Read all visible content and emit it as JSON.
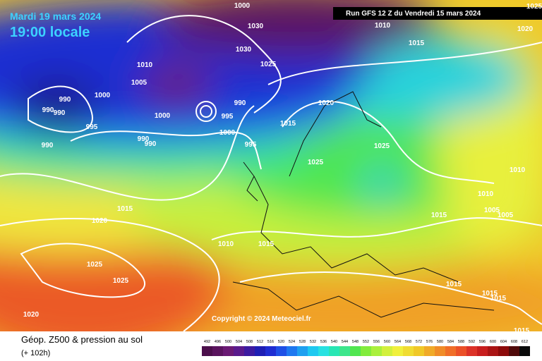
{
  "header": {
    "date": "Mardi 19 mars 2024",
    "time": "19:00 locale",
    "run": "Run GFS 12 Z du Vendredi 15 mars 2024"
  },
  "map": {
    "copyright": "Copyright © 2024 Meteociel.fr",
    "isobar_labels": [
      "1000",
      "1030",
      "1030",
      "1025",
      "1010",
      "1005",
      "1000",
      "990",
      "990",
      "990",
      "1000",
      "995",
      "990",
      "1000",
      "995",
      "995",
      "990",
      "990",
      "990",
      "1015",
      "1020",
      "1025",
      "1025",
      "1015",
      "1020",
      "1010",
      "1015",
      "1015",
      "1010",
      "1005",
      "1005",
      "1010",
      "1025",
      "1025",
      "1020",
      "1015",
      "1015",
      "1015",
      "1015",
      "1010",
      "1015",
      "1020",
      "1025"
    ]
  },
  "footer": {
    "title": "Géop. Z500 & pression au sol",
    "lead": "(+ 102h)"
  },
  "legend": {
    "values": [
      492,
      496,
      500,
      504,
      508,
      512,
      516,
      520,
      524,
      528,
      532,
      536,
      540,
      544,
      548,
      552,
      556,
      560,
      564,
      568,
      572,
      576,
      580,
      584,
      588,
      592,
      596,
      600,
      604,
      608,
      612
    ],
    "colors": [
      "#4b0f4b",
      "#5a145e",
      "#6a1a74",
      "#5a1a8c",
      "#3c1aa0",
      "#1e1eb4",
      "#1e2dd2",
      "#1e50e6",
      "#1e78f0",
      "#1ea0f0",
      "#1ec8f0",
      "#28e1e1",
      "#28e6b4",
      "#3ce68c",
      "#50e650",
      "#82ec3c",
      "#aaf03c",
      "#d2f03c",
      "#f0f03c",
      "#f0dc32",
      "#f0c828",
      "#f0aa28",
      "#f08c28",
      "#f06e28",
      "#eb5028",
      "#dc3228",
      "#c81e1e",
      "#aa1414",
      "#8c0a0a",
      "#500a0a",
      "#0a0a0a"
    ]
  }
}
